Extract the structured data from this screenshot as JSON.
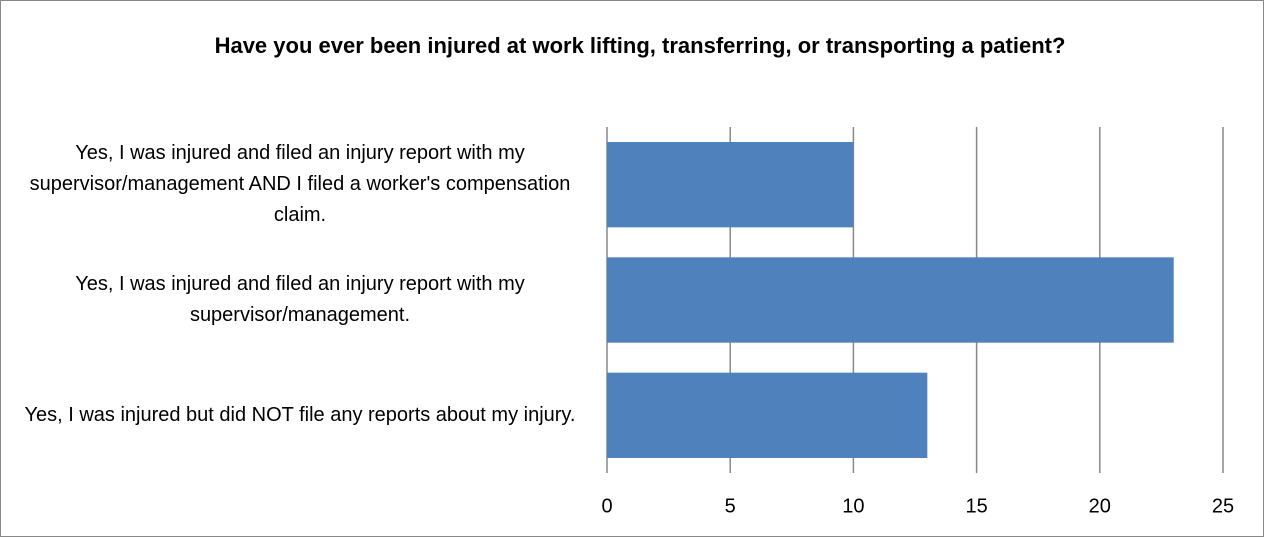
{
  "chart_data": {
    "type": "bar",
    "orientation": "horizontal",
    "title": "Have you ever been injured at work lifting, transferring, or transporting a patient?",
    "categories": [
      "Yes, I was injured and filed an injury report with my supervisor/management AND I filed a worker's compensation claim.",
      "Yes, I was injured and filed an injury report with my supervisor/management.",
      "Yes, I was injured but did NOT file any reports about my injury."
    ],
    "values": [
      10,
      23,
      13
    ],
    "color": "#4f81bd",
    "xlim": [
      0,
      25
    ],
    "xticks": [
      0,
      5,
      10,
      15,
      20,
      25
    ],
    "grid": true
  }
}
